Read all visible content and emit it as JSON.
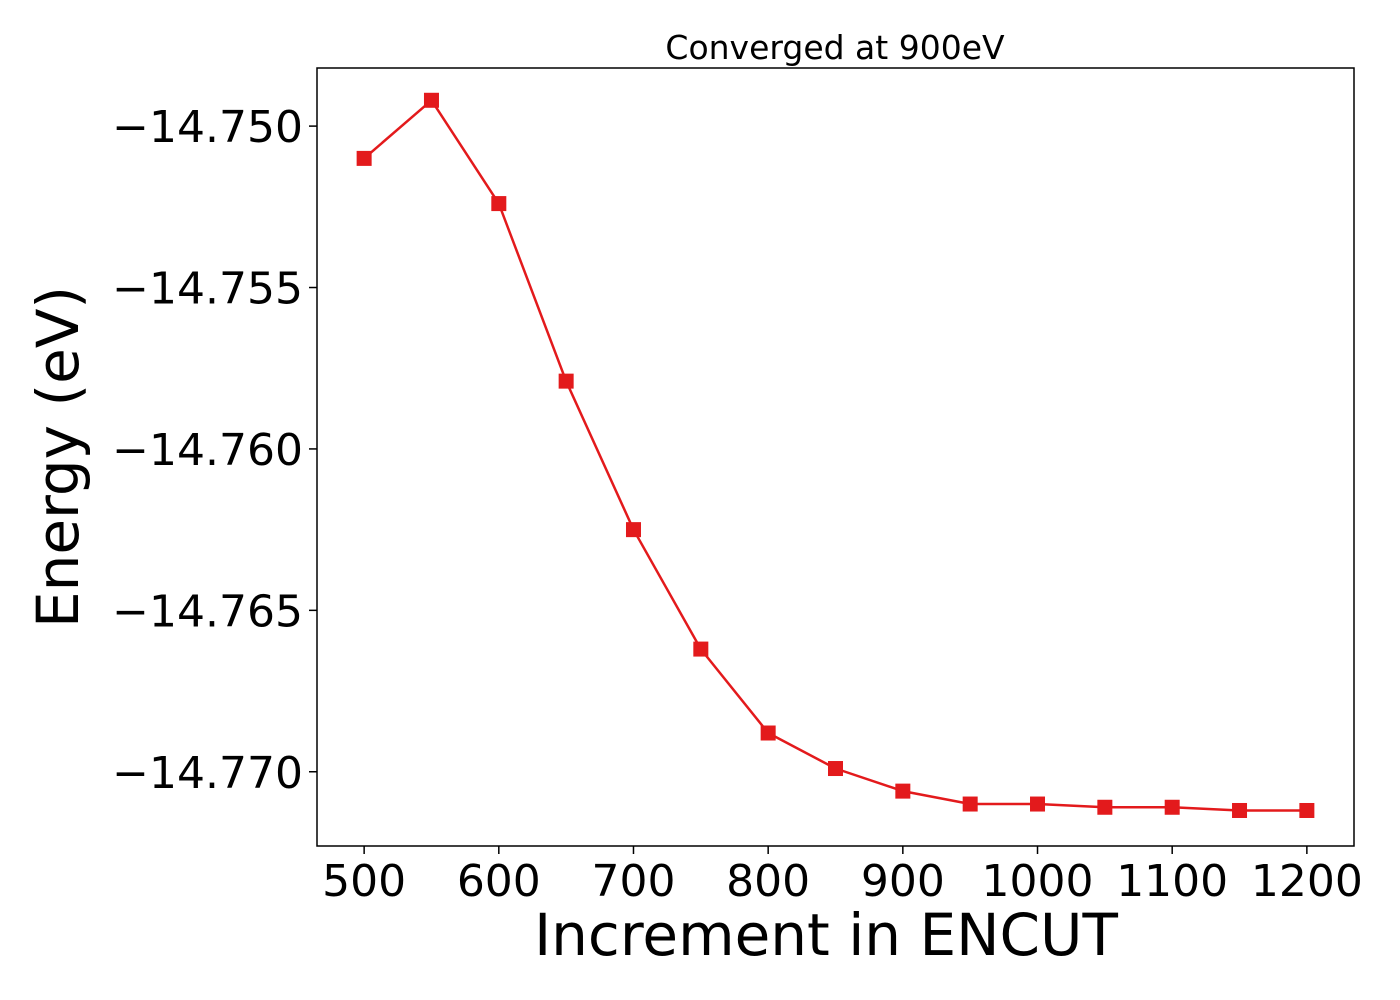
{
  "chart_data": {
    "type": "line",
    "title": "Converged at 900eV",
    "xlabel": "Increment in ENCUT",
    "ylabel": "Energy (eV)",
    "xlim": [
      465,
      1235
    ],
    "ylim": [
      -14.7723,
      -14.7482
    ],
    "x_ticks": [
      500,
      600,
      700,
      800,
      900,
      1000,
      1100,
      1200
    ],
    "x_tick_labels": [
      "500",
      "600",
      "700",
      "800",
      "900",
      "1000",
      "1100",
      "1200"
    ],
    "y_ticks": [
      -14.75,
      -14.755,
      -14.76,
      -14.765,
      -14.77
    ],
    "y_tick_labels": [
      "−14.750",
      "−14.755",
      "−14.760",
      "−14.765",
      "−14.770"
    ],
    "grid": false,
    "legend": "none",
    "series": [
      {
        "color": "#e31a1c",
        "marker": "square",
        "x": [
          500,
          550,
          600,
          650,
          700,
          750,
          800,
          850,
          900,
          950,
          1000,
          1050,
          1100,
          1150,
          1200
        ],
        "y": [
          -14.751,
          -14.7492,
          -14.7524,
          -14.7579,
          -14.7625,
          -14.7662,
          -14.7688,
          -14.7699,
          -14.7706,
          -14.771,
          -14.771,
          -14.7711,
          -14.7711,
          -14.7712,
          -14.7712
        ]
      }
    ]
  }
}
